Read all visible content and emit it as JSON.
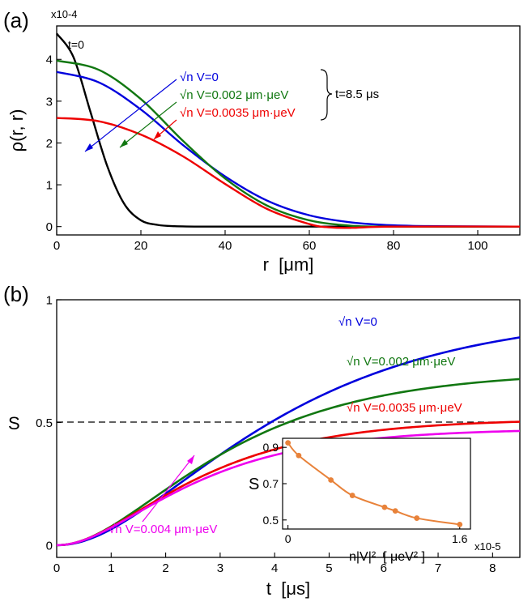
{
  "panels": {
    "a_label": "(a)",
    "b_label": "(b)"
  },
  "colors": {
    "black": "#000000",
    "blue": "#0000dd",
    "green": "#117711",
    "red": "#ee0000",
    "magenta": "#ee00ee",
    "orange": "#e8823a"
  },
  "chart_data": [
    {
      "type": "line",
      "panel": "(a)",
      "xlabel": "r  [μm]",
      "ylabel": "ρ(r, r)",
      "y_multiplier": "x10-4",
      "xlim": [
        0,
        110
      ],
      "ylim": [
        -0.2,
        4.8
      ],
      "xticks": [
        "0",
        "20",
        "40",
        "60",
        "80",
        "100"
      ],
      "yticks": [
        "0",
        "1",
        "2",
        "3",
        "4"
      ],
      "series": [
        {
          "name": "t=0",
          "color": "black",
          "x": [
            0,
            4,
            8,
            12,
            16,
            20,
            24,
            28,
            35,
            50,
            110
          ],
          "y": [
            4.62,
            4.05,
            2.75,
            1.45,
            0.55,
            0.15,
            0.04,
            0.01,
            0.0,
            0.0,
            0.0
          ]
        },
        {
          "name": "√n V=0",
          "color": "blue",
          "x": [
            0,
            10,
            20,
            30,
            40,
            50,
            60,
            70,
            80,
            90,
            110
          ],
          "y": [
            3.7,
            3.45,
            2.8,
            1.95,
            1.2,
            0.62,
            0.27,
            0.1,
            0.03,
            0.01,
            0.0
          ]
        },
        {
          "name": "√n V=0.002 μm·μeV",
          "color": "green",
          "x": [
            0,
            10,
            20,
            30,
            40,
            50,
            60,
            70,
            80,
            90,
            110
          ],
          "y": [
            3.97,
            3.75,
            3.05,
            2.05,
            1.15,
            0.5,
            0.15,
            0.02,
            0.0,
            0.0,
            0.0
          ]
        },
        {
          "name": "√n V=0.0035 μm·μeV",
          "color": "red",
          "x": [
            0,
            10,
            20,
            30,
            40,
            50,
            60,
            65,
            70,
            80,
            110
          ],
          "y": [
            2.6,
            2.52,
            2.2,
            1.68,
            1.02,
            0.42,
            0.06,
            -0.02,
            -0.03,
            0.0,
            0.0
          ]
        }
      ],
      "annotations": {
        "t0": "t=0",
        "n0": "√n V=0",
        "n002": "√n V=0.002 μm·μeV",
        "n0035": "√n V=0.0035 μm·μeV",
        "time": "t=8.5 μs"
      }
    },
    {
      "type": "line",
      "panel": "(b)",
      "xlabel": "t  [μs]",
      "ylabel": "S",
      "xlim": [
        0,
        8.5
      ],
      "ylim": [
        -0.05,
        1.0
      ],
      "xticks": [
        "0",
        "1",
        "2",
        "3",
        "4",
        "5",
        "6",
        "7",
        "8"
      ],
      "yticks": [
        "0",
        "0.5",
        "1"
      ],
      "reference_line": 0.5,
      "series": [
        {
          "name": "√n V=0",
          "color": "blue",
          "s_inf": 0.95
        },
        {
          "name": "√n V=0.002 μm·μeV",
          "color": "green",
          "s_inf": 0.71
        },
        {
          "name": "√n V=0.0035 μm·μeV",
          "color": "red",
          "s_inf": 0.515
        },
        {
          "name": "√n V=0.004 μm·μeV",
          "color": "magenta",
          "s_inf": 0.475
        }
      ],
      "annotations": {
        "n0": "√n V=0",
        "n002": "√n V=0.002 μm·μeV",
        "n0035": "√n V=0.0035 μm·μeV",
        "n004": "√n V=0.004 μm·μeV"
      }
    },
    {
      "type": "line",
      "panel": "(b) inset",
      "xlabel": "n|V|²  [ μeV² ]",
      "ylabel": "S",
      "x_multiplier": "x10-5",
      "xlim": [
        -0.05,
        1.7
      ],
      "ylim": [
        0.45,
        0.95
      ],
      "xticks": [
        "0",
        "1.6"
      ],
      "yticks": [
        "0.5",
        "0.7",
        "0.9"
      ],
      "series": [
        {
          "name": "S vs n|V|²",
          "color": "orange",
          "x": [
            0,
            0.1,
            0.4,
            0.6,
            0.9,
            1.0,
            1.2,
            1.6
          ],
          "y": [
            0.925,
            0.855,
            0.72,
            0.635,
            0.57,
            0.55,
            0.51,
            0.475
          ]
        }
      ]
    }
  ]
}
